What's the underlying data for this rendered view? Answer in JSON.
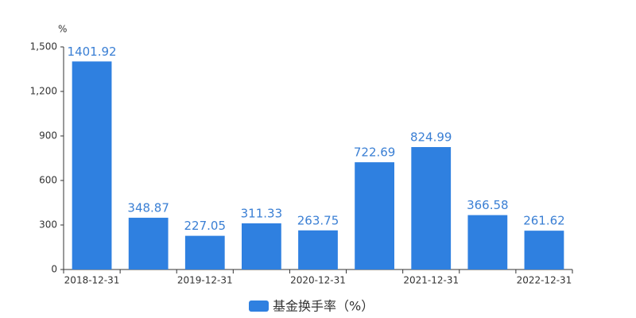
{
  "chart_data": {
    "type": "bar",
    "y_label": "%",
    "categories": [
      "2018-12-31",
      null,
      "2019-12-31",
      null,
      "2020-12-31",
      null,
      "2021-12-31",
      null,
      "2022-12-31"
    ],
    "series": [
      {
        "name": "基金换手率（%）",
        "color": "#2f80e0",
        "values": [
          1401.92,
          348.87,
          227.05,
          311.33,
          263.75,
          722.69,
          824.99,
          366.58,
          261.62
        ]
      }
    ],
    "ylim": [
      0,
      1500
    ],
    "yticks": [
      0,
      300,
      600,
      900,
      {
        "value": 1200,
        "label": "1,200"
      },
      {
        "value": 1500,
        "label": "1,500"
      }
    ],
    "legend": "bottom"
  }
}
